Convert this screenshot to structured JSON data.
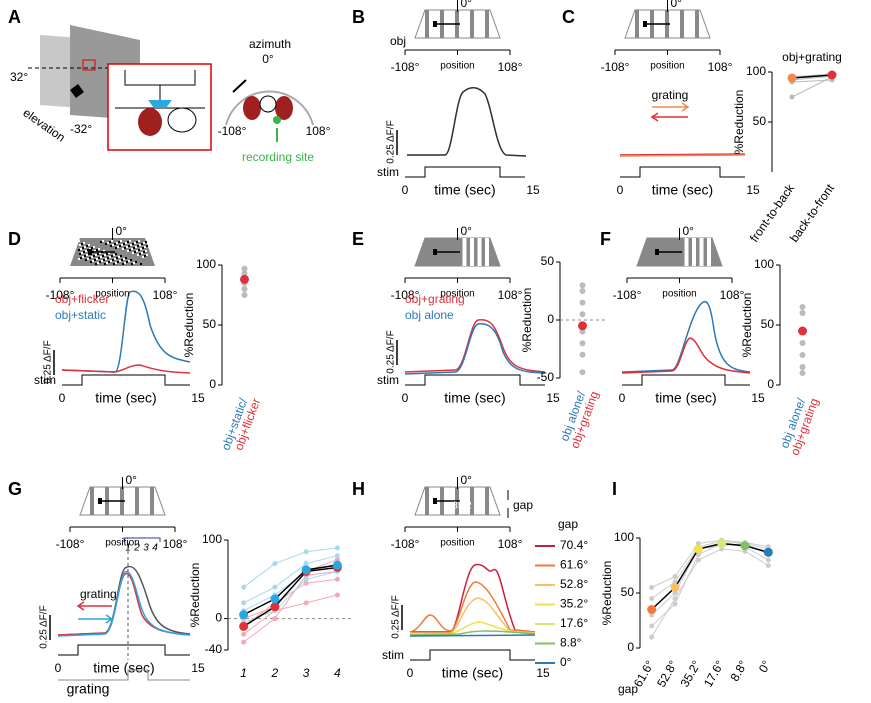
{
  "A": {
    "letter": "A",
    "elevation_top": "32°",
    "elevation_label": "elevation",
    "elevation_bottom": "-32°",
    "azimuth_label": "azimuth",
    "azimuth_center": "0°",
    "azimuth_left": "-108°",
    "azimuth_right": "108°",
    "recording_site": "recording site"
  },
  "B": {
    "letter": "B",
    "stimulus": "obj",
    "stim_center": "0°",
    "pos_left": "-108°",
    "pos_label": "position",
    "pos_right": "108°",
    "scale": "0.25 ΔF/F",
    "stim_label": "stim",
    "time_start": "0",
    "time_label": "time (sec)",
    "time_end": "15"
  },
  "C": {
    "letter": "C",
    "stim_center": "0°",
    "pos_left": "-108°",
    "pos_label": "position",
    "pos_right": "108°",
    "grating": "grating",
    "time_start": "0",
    "time_label": "time (sec)",
    "time_end": "15",
    "plot": {
      "title": "obj+grating",
      "ylabel": "%Reduction",
      "ylim": [
        0,
        100
      ],
      "yticks": [
        50,
        100
      ],
      "categories": [
        "front-to-back",
        "back-to-front"
      ],
      "rotate": -55,
      "series": [
        {
          "color": "#bbbbbb",
          "values": [
            95,
            98
          ]
        },
        {
          "color": "#bbbbbb",
          "values": [
            92,
            96
          ]
        },
        {
          "color": "#bbbbbb",
          "values": [
            90,
            92
          ]
        },
        {
          "color": "#bbbbbb",
          "values": [
            75,
            95
          ]
        }
      ],
      "means": [
        {
          "color": "#000000",
          "values": [
            94,
            97
          ],
          "point_colors": [
            "#f08a4b",
            "#e0303a"
          ]
        }
      ]
    }
  },
  "D": {
    "letter": "D",
    "stim_center": "0°",
    "pos_left": "-108°",
    "pos_label": "position",
    "pos_right": "108°",
    "legend": [
      "obj+flicker",
      "obj+static"
    ],
    "legend_colors": [
      "#e0303a",
      "#2a7ab8"
    ],
    "scale": "0.25 ΔF/F",
    "stim_label": "stim",
    "time_start": "0",
    "time_label": "time (sec)",
    "time_end": "15",
    "plot": {
      "ylabel": "%Reduction",
      "ylim": [
        0,
        100
      ],
      "yticks": [
        0,
        50,
        100
      ],
      "categories": [
        [
          "obj+static/",
          "obj+flicker"
        ]
      ],
      "category_colors": [
        "#2a7ab8",
        "#e0303a"
      ],
      "rotate": -70,
      "values": [
        97,
        93,
        90,
        85,
        80,
        75
      ],
      "point_color": "#bbbbbb",
      "means": [
        {
          "color": "#e0303a",
          "values": [
            88
          ]
        }
      ]
    }
  },
  "E": {
    "letter": "E",
    "stim_center": "0°",
    "pos_left": "-108°",
    "pos_label": "position",
    "pos_right": "108°",
    "legend": [
      "obj+grating",
      "obj alone"
    ],
    "legend_colors": [
      "#e0303a",
      "#2a7ab8"
    ],
    "scale": "0.25 ΔF/F",
    "stim_label": "stim",
    "time_start": "0",
    "time_label": "time (sec)",
    "time_end": "15",
    "plot": {
      "ylabel": "%Reduction",
      "ylim": [
        -50,
        50
      ],
      "yticks": [
        -50,
        0,
        50
      ],
      "zero_line": true,
      "categories": [
        [
          "obj alone/",
          "obj+grating"
        ]
      ],
      "category_colors": [
        "#2a7ab8",
        "#e0303a"
      ],
      "rotate": -70,
      "values": [
        30,
        25,
        15,
        5,
        -10,
        -20,
        -30,
        -45
      ],
      "point_color": "#bbbbbb",
      "means": [
        {
          "color": "#e0303a",
          "values": [
            -5
          ]
        }
      ]
    }
  },
  "F": {
    "letter": "F",
    "stim_center": "0°",
    "pos_left": "-108°",
    "pos_label": "position",
    "pos_right": "108°",
    "time_start": "0",
    "time_label": "time (sec)",
    "time_end": "15",
    "plot": {
      "ylabel": "%Reduction",
      "ylim": [
        0,
        100
      ],
      "yticks": [
        0,
        50,
        100
      ],
      "categories": [
        [
          "obj alone/",
          "obj+grating"
        ]
      ],
      "category_colors": [
        "#2a7ab8",
        "#e0303a"
      ],
      "rotate": -70,
      "values": [
        65,
        60,
        45,
        35,
        25,
        15,
        10
      ],
      "point_color": "#bbbbbb",
      "means": [
        {
          "color": "#e0303a",
          "values": [
            45
          ]
        }
      ]
    }
  },
  "G": {
    "letter": "G",
    "stim_center": "0°",
    "pos_left": "-108°",
    "pos_label": "position",
    "pos_right": "108°",
    "markers": [
      "1",
      "2",
      "3",
      "4"
    ],
    "grating": "grating",
    "scale": "0.25 ΔF/F",
    "time_start": "0",
    "time_label": "time (sec)",
    "time_end": "15",
    "grating_label": "grating",
    "plot": {
      "ylabel": "%Reduction",
      "ylim": [
        -40,
        100
      ],
      "yticks": [
        -40,
        0,
        100
      ],
      "zero_line": true,
      "categories": [
        "1",
        "2",
        "3",
        "4"
      ],
      "rotate": 0,
      "series": [
        {
          "color": "#f5a8b0",
          "values": [
            -30,
            0,
            55,
            60
          ]
        },
        {
          "color": "#f5a8b0",
          "values": [
            -20,
            10,
            20,
            30
          ]
        },
        {
          "color": "#f5a8b0",
          "values": [
            -10,
            20,
            45,
            50
          ]
        },
        {
          "color": "#f5a8b0",
          "values": [
            0,
            15,
            60,
            75
          ]
        },
        {
          "color": "#a8d8ef",
          "values": [
            40,
            70,
            85,
            90
          ]
        },
        {
          "color": "#a8d8ef",
          "values": [
            20,
            40,
            70,
            80
          ]
        },
        {
          "color": "#a8d8ef",
          "values": [
            10,
            30,
            60,
            70
          ]
        },
        {
          "color": "#a8d8ef",
          "values": [
            -5,
            10,
            50,
            60
          ]
        }
      ],
      "means": [
        {
          "color": "#000000",
          "values": [
            -10,
            15,
            60,
            65
          ],
          "point_colors": [
            "#e0303a",
            "#e0303a",
            "#e0303a",
            "#e0303a"
          ]
        },
        {
          "color": "#000000",
          "values": [
            5,
            25,
            62,
            68
          ],
          "point_colors": [
            "#29a8e0",
            "#29a8e0",
            "#29a8e0",
            "#29a8e0"
          ]
        }
      ]
    }
  },
  "H": {
    "letter": "H",
    "stim_center": "0°",
    "gap_value": "35.2",
    "gap": "gap",
    "pos_left": "-108°",
    "pos_label": "position",
    "pos_right": "108°",
    "legend_title": "gap",
    "legend": [
      "70.4°",
      "61.6°",
      "52.8°",
      "35.2°",
      "17.6°",
      "8.8°",
      "0°"
    ],
    "legend_colors": [
      "#c8203a",
      "#f07a3a",
      "#f8c060",
      "#f0e050",
      "#d8e870",
      "#80c060",
      "#2a7ab8"
    ],
    "scale": "0.25 ΔF/F",
    "stim_label": "stim",
    "time_start": "0",
    "time_label": "time (sec)",
    "time_end": "15"
  },
  "I": {
    "letter": "I",
    "gap_label": "gap",
    "plot": {
      "ylabel": "%Reduction",
      "ylim": [
        0,
        100
      ],
      "yticks": [
        0,
        50,
        100
      ],
      "categories": [
        "61.6°",
        "52.8°",
        "35.2°",
        "17.6°",
        "8.8°",
        "0°"
      ],
      "rotate": -60,
      "series": [
        {
          "color": "#cccccc",
          "values": [
            20,
            40,
            85,
            95,
            92,
            80
          ]
        },
        {
          "color": "#cccccc",
          "values": [
            30,
            50,
            90,
            93,
            95,
            90
          ]
        },
        {
          "color": "#cccccc",
          "values": [
            45,
            60,
            92,
            97,
            95,
            85
          ]
        },
        {
          "color": "#cccccc",
          "values": [
            55,
            65,
            95,
            98,
            96,
            92
          ]
        },
        {
          "color": "#cccccc",
          "values": [
            10,
            45,
            80,
            90,
            88,
            75
          ]
        }
      ],
      "means": [
        {
          "color": "#000000",
          "values": [
            35,
            55,
            90,
            95,
            93,
            87
          ],
          "point_colors": [
            "#f07a3a",
            "#f8c060",
            "#f0e050",
            "#d8e870",
            "#80c060",
            "#2a7ab8"
          ]
        }
      ]
    }
  }
}
